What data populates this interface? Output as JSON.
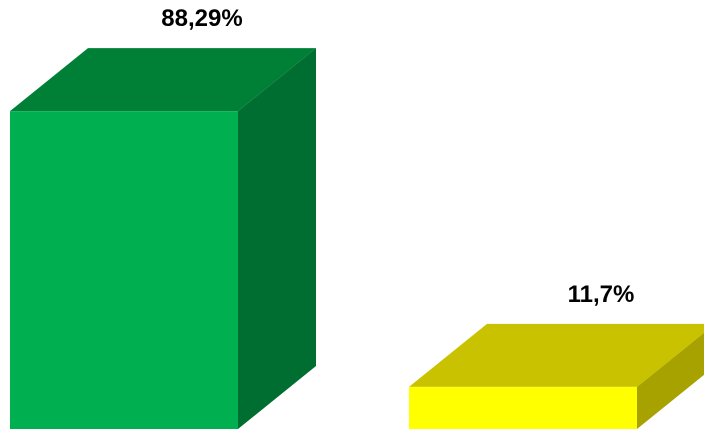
{
  "chart_data": {
    "type": "bar",
    "style": "3d",
    "categories": [
      "",
      ""
    ],
    "values": [
      88.29,
      11.7
    ],
    "data_labels": [
      "88,29%",
      "11,7%"
    ],
    "ylim": [
      0,
      100
    ],
    "grid": false,
    "legend": "none",
    "colors": [
      {
        "front": "#00b050",
        "top": "#008037",
        "side": "#006e30"
      },
      {
        "front": "#ffff00",
        "top": "#c8c200",
        "side": "#a8a200"
      }
    ]
  }
}
